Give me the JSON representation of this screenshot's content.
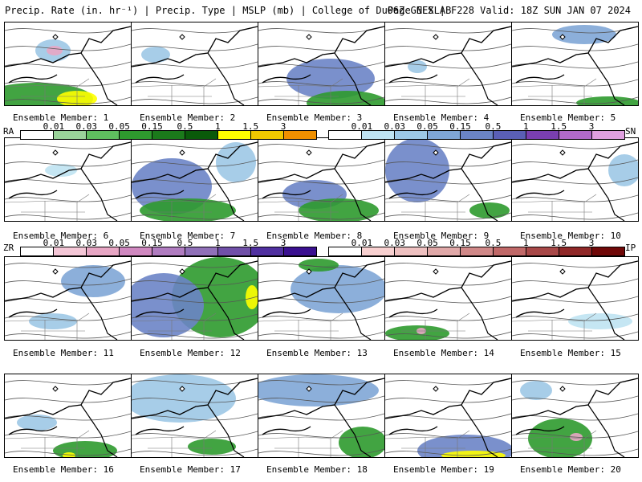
{
  "header": {
    "left": "Precip. Rate (in. hr⁻¹) | Precip. Type | MSLP (mb) | College of DuPage NEXLAB",
    "right": "06Z GEFS | F228 Valid: 18Z SUN JAN 07 2024"
  },
  "members": [
    "Ensemble Member: 1",
    "Ensemble Member: 2",
    "Ensemble Member: 3",
    "Ensemble Member: 4",
    "Ensemble Member: 5",
    "Ensemble Member: 6",
    "Ensemble Member: 7",
    "Ensemble Member: 8",
    "Ensemble Member: 9",
    "Ensemble Member: 10",
    "Ensemble Member: 11",
    "Ensemble Member: 12",
    "Ensemble Member: 13",
    "Ensemble Member: 14",
    "Ensemble Member: 15",
    "Ensemble Member: 16",
    "Ensemble Member: 17",
    "Ensemble Member: 18",
    "Ensemble Member: 19",
    "Ensemble Member: 20"
  ],
  "legend": {
    "rain": {
      "code": "RA",
      "labels": [
        "0.01",
        "0.03",
        "0.05",
        "0.15",
        "0.5",
        "1",
        "1.5",
        "3"
      ],
      "colors": [
        "#ffffff",
        "#9ad39a",
        "#5fbf5f",
        "#2e9a2e",
        "#1b7a1b",
        "#0a5a0a",
        "#ffff00",
        "#f0c800",
        "#f09000"
      ]
    },
    "snow": {
      "code": "SN",
      "labels": [
        "0.01",
        "0.03",
        "0.05",
        "0.15",
        "0.5",
        "1",
        "1.5",
        "3"
      ],
      "colors": [
        "#ffffff",
        "#bfe3f2",
        "#9dc8e6",
        "#7fa6d6",
        "#6b84c6",
        "#5a5fb6",
        "#7a3fb0",
        "#b06ac8",
        "#e0a0e0"
      ]
    },
    "frz": {
      "code": "ZR",
      "labels": [
        "0.01",
        "0.03",
        "0.05",
        "0.15",
        "0.5",
        "1",
        "1.5",
        "3"
      ],
      "colors": [
        "#ffffff",
        "#f4c6d6",
        "#e8a6c4",
        "#d088c0",
        "#b07cc0",
        "#9070b8",
        "#7050a8",
        "#5030a0",
        "#3a1090"
      ]
    },
    "sleet": {
      "code": "IP",
      "labels": [
        "0.01",
        "0.03",
        "0.05",
        "0.15",
        "0.5",
        "1",
        "1.5",
        "3"
      ],
      "colors": [
        "#ffffff",
        "#f8d0d0",
        "#eec0c0",
        "#e0a8a8",
        "#d08888",
        "#c06868",
        "#a84848",
        "#902828",
        "#700808"
      ]
    }
  },
  "icons": [
    "map-panel-icon"
  ]
}
